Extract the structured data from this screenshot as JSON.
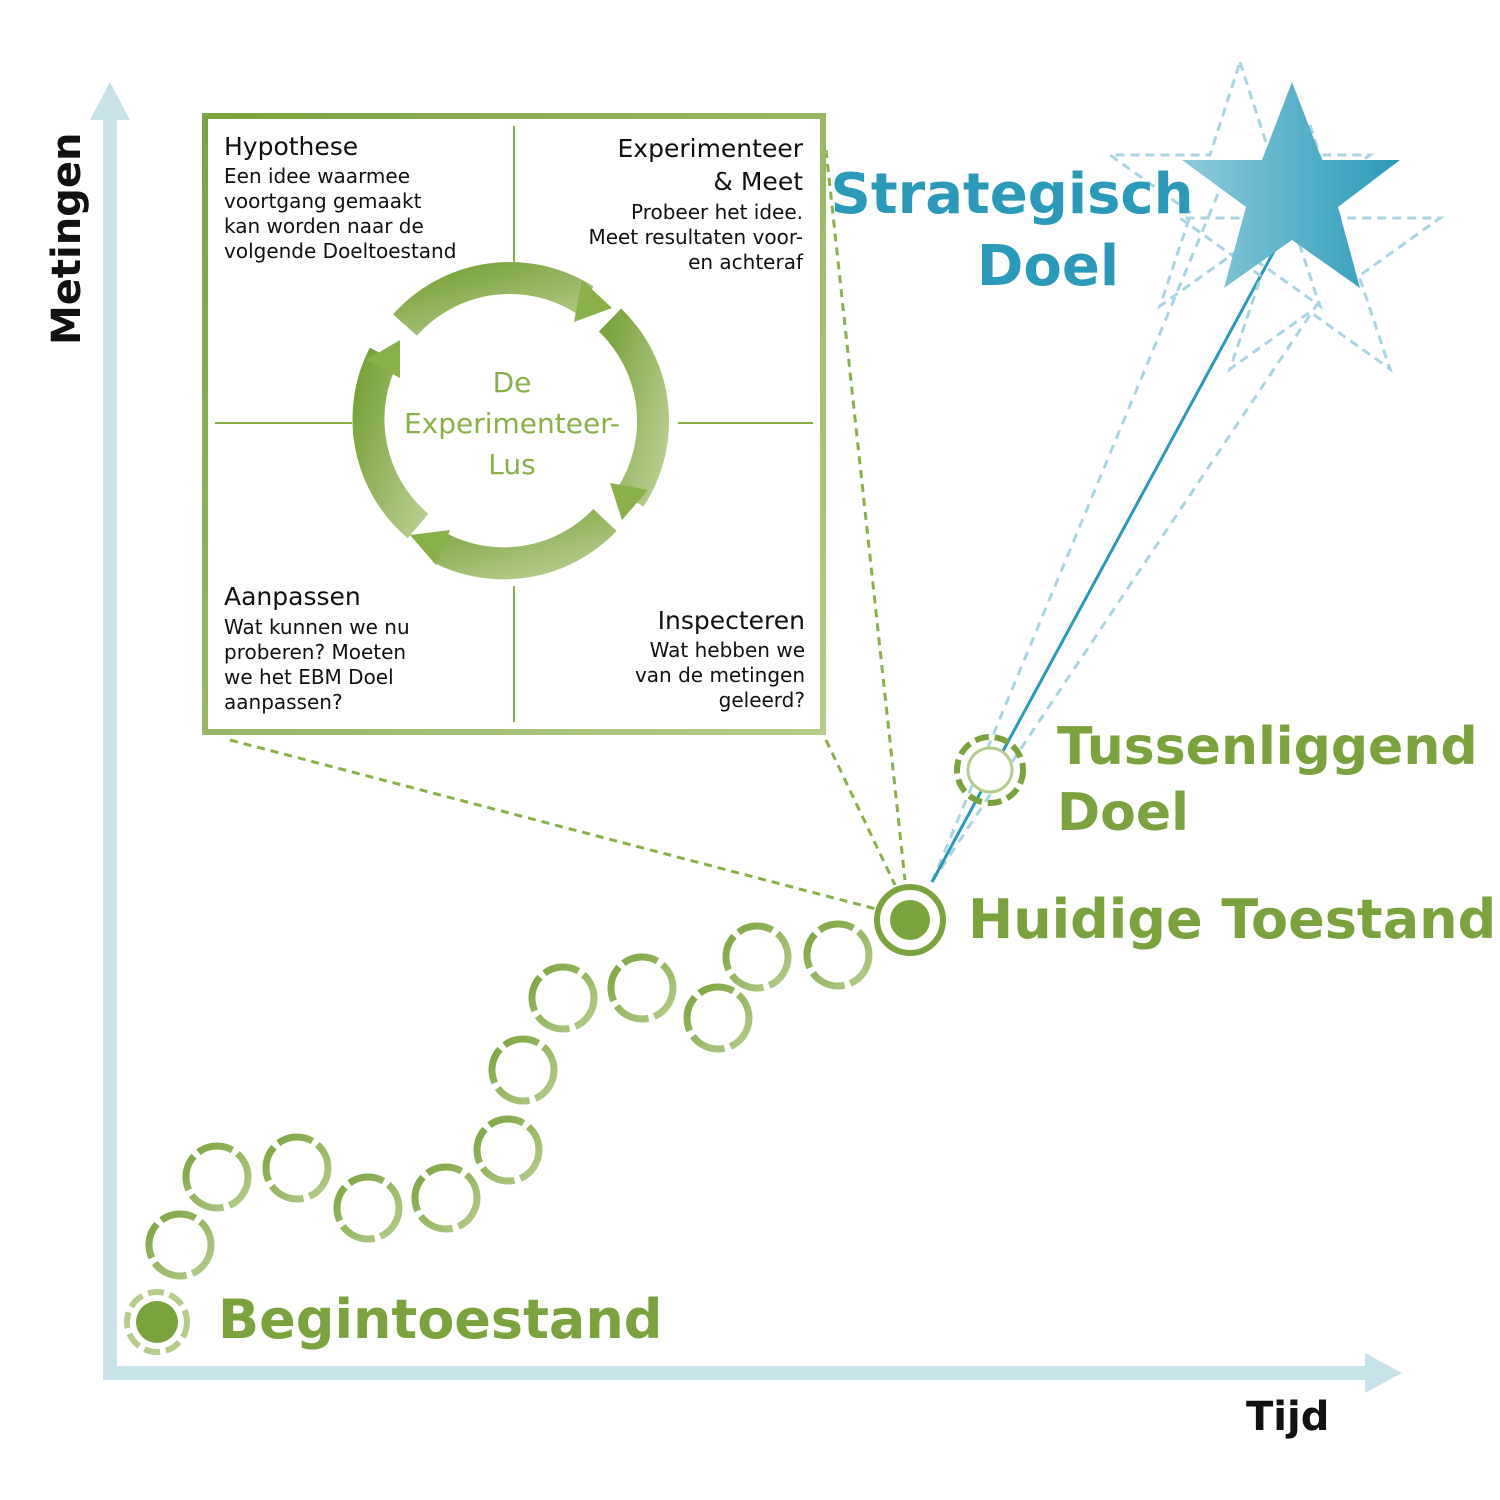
{
  "axes": {
    "y_label": "Metingen",
    "x_label": "Tijd"
  },
  "loop": {
    "center_label_lines": [
      "De",
      "Experimenteer-",
      "Lus"
    ],
    "quadrants": {
      "top_left": {
        "title": "Hypothese",
        "lines": [
          "Een idee waarmee",
          "voortgang gemaakt",
          "kan worden naar de",
          "volgende Doeltoestand"
        ]
      },
      "top_right": {
        "title_lines": [
          "Experimenteer",
          "& Meet"
        ],
        "lines": [
          "Probeer het idee.",
          "Meet resultaten voor-",
          "en achteraf"
        ]
      },
      "bottom_left": {
        "title": "Aanpassen",
        "lines": [
          "Wat kunnen we nu",
          "proberen? Moeten",
          "we het EBM Doel",
          "aanpassen?"
        ]
      },
      "bottom_right": {
        "title": "Inspecteren",
        "lines": [
          "Wat hebben we",
          "van de metingen",
          "geleerd?"
        ]
      }
    }
  },
  "states": {
    "start": "Begintoestand",
    "current": "Huidige Toestand",
    "intermediate_lines": [
      "Tussenliggend",
      "Doel"
    ],
    "strategic_lines": [
      "Strategisch",
      "Doel"
    ]
  },
  "colors": {
    "green": "#7aa33d",
    "light_green": "#b5cc8c",
    "blue": "#2a9ab8",
    "light_blue": "#a9d4e2",
    "axis": "#c8e2ea"
  }
}
